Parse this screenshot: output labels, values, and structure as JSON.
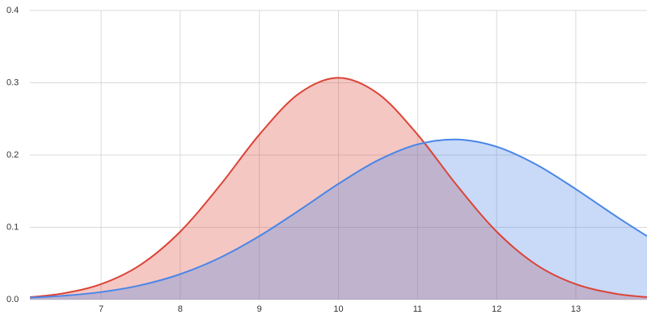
{
  "chart_data": {
    "type": "area",
    "x": [
      6.1,
      6.5,
      7,
      7.5,
      8,
      8.5,
      9,
      9.5,
      10,
      10.5,
      11,
      11.5,
      12,
      12.5,
      13,
      13.5,
      13.9
    ],
    "series": [
      {
        "color": "#db4437",
        "values": [
          0.0034,
          0.0082,
          0.0214,
          0.0483,
          0.094,
          0.1577,
          0.2283,
          0.285,
          0.3069,
          0.285,
          0.2283,
          0.1577,
          0.094,
          0.0483,
          0.0214,
          0.0082,
          0.0034
        ]
      },
      {
        "color": "#4a86e8",
        "values": [
          0.0027,
          0.0051,
          0.0104,
          0.0199,
          0.0352,
          0.0578,
          0.0878,
          0.1232,
          0.1602,
          0.1928,
          0.2148,
          0.2215,
          0.2115,
          0.1869,
          0.1529,
          0.1159,
          0.0878
        ]
      }
    ],
    "xlim": [
      6.1,
      13.9
    ],
    "xticks": [
      7,
      8,
      9,
      10,
      11,
      12,
      13
    ],
    "ylim": [
      0,
      0.4
    ],
    "yticks": [
      {
        "value": 0,
        "label": "0.0"
      },
      0.1,
      0.2,
      0.3,
      0.4
    ],
    "grid": true
  }
}
